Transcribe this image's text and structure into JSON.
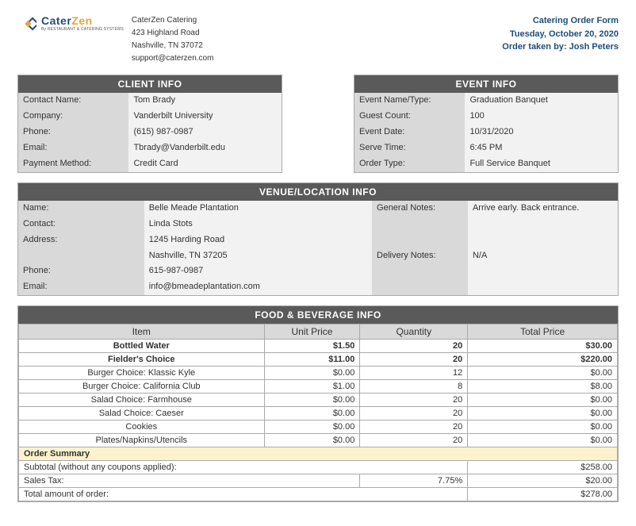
{
  "company": {
    "name": "CaterZen Catering",
    "address1": "423 Highland Road",
    "address2": "Nashville, TN  37072",
    "email": "support@caterzen.com",
    "logo_main1": "Cater",
    "logo_main2": "Zen",
    "logo_sub": "By RESTAURANT & CATERING SYSTEMS"
  },
  "order_meta": {
    "form_title": "Catering Order Form",
    "date": "Tuesday, October 20, 2020",
    "taken_by_label": "Order taken by:  ",
    "taken_by": "Josh Peters"
  },
  "client": {
    "header": "CLIENT INFO",
    "labels": {
      "contact": "Contact Name:",
      "company": "Company:",
      "phone": "Phone:",
      "email": "Email:",
      "payment": "Payment Method:"
    },
    "values": {
      "contact": "Tom Brady",
      "company": "Vanderbilt University",
      "phone": "(615) 987-0987",
      "email": "Tbrady@Vanderbilt.edu",
      "payment": "Credit Card"
    }
  },
  "event": {
    "header": "EVENT INFO",
    "labels": {
      "name": "Event Name/Type:",
      "guests": "Guest Count:",
      "date": "Event Date:",
      "serve": "Serve Time:",
      "type": "Order Type:"
    },
    "values": {
      "name": "Graduation Banquet",
      "guests": "100",
      "date": "10/31/2020",
      "serve": "6:45 PM",
      "type": "Full Service Banquet"
    }
  },
  "venue": {
    "header": "VENUE/LOCATION INFO",
    "labels": {
      "name": "Name:",
      "contact": "Contact:",
      "address": "Address:",
      "phone": "Phone:",
      "email": "Email:",
      "general": "General Notes:",
      "delivery": "Delivery Notes:"
    },
    "values": {
      "name": "Belle Meade Plantation",
      "contact": "Linda Stots",
      "address1": "1245 Harding Road",
      "address2": "Nashville, TN 37205",
      "phone": "615-987-0987",
      "email": "info@bmeadeplantation.com",
      "general": "Arrive early.  Back entrance.",
      "delivery": "N/A"
    }
  },
  "food": {
    "header": "FOOD & BEVERAGE INFO",
    "columns": {
      "item": "Item",
      "price": "Unit Price",
      "qty": "Quantity",
      "total": "Total Price"
    },
    "rows": [
      {
        "item": "Bottled Water",
        "price": "$1.50",
        "qty": "20",
        "total": "$30.00",
        "bold": true
      },
      {
        "item": "Fielder's Choice",
        "price": "$11.00",
        "qty": "20",
        "total": "$220.00",
        "bold": true
      },
      {
        "item": "Burger Choice:  Klassic Kyle",
        "price": "$0.00",
        "qty": "12",
        "total": "$0.00",
        "bold": false
      },
      {
        "item": "Burger Choice: California Club",
        "price": "$1.00",
        "qty": "8",
        "total": "$8.00",
        "bold": false
      },
      {
        "item": "Salad Choice:  Farmhouse",
        "price": "$0.00",
        "qty": "20",
        "total": "$0.00",
        "bold": false
      },
      {
        "item": "Salad Choice: Caeser",
        "price": "$0.00",
        "qty": "20",
        "total": "$0.00",
        "bold": false
      },
      {
        "item": "Cookies",
        "price": "$0.00",
        "qty": "20",
        "total": "$0.00",
        "bold": false
      },
      {
        "item": "Plates/Napkins/Utencils",
        "price": "$0.00",
        "qty": "20",
        "total": "$0.00",
        "bold": false
      }
    ],
    "summary": {
      "title": "Order Summary",
      "subtotal_label": "Subtotal (without any coupons applied):",
      "subtotal": "$258.00",
      "tax_label": "Sales Tax:",
      "tax_rate": "7.75%",
      "tax_amount": "$20.00",
      "total_label": "Total amount of order:",
      "total": "$278.00"
    }
  },
  "style": {
    "header_bg": "#5a5a5a",
    "label_bg": "#d9d9d9",
    "value_bg": "#f2f2f2",
    "summary_bg": "#fdf2ce",
    "brand_blue": "#1d4d7a",
    "brand_orange": "#e8a33d"
  }
}
